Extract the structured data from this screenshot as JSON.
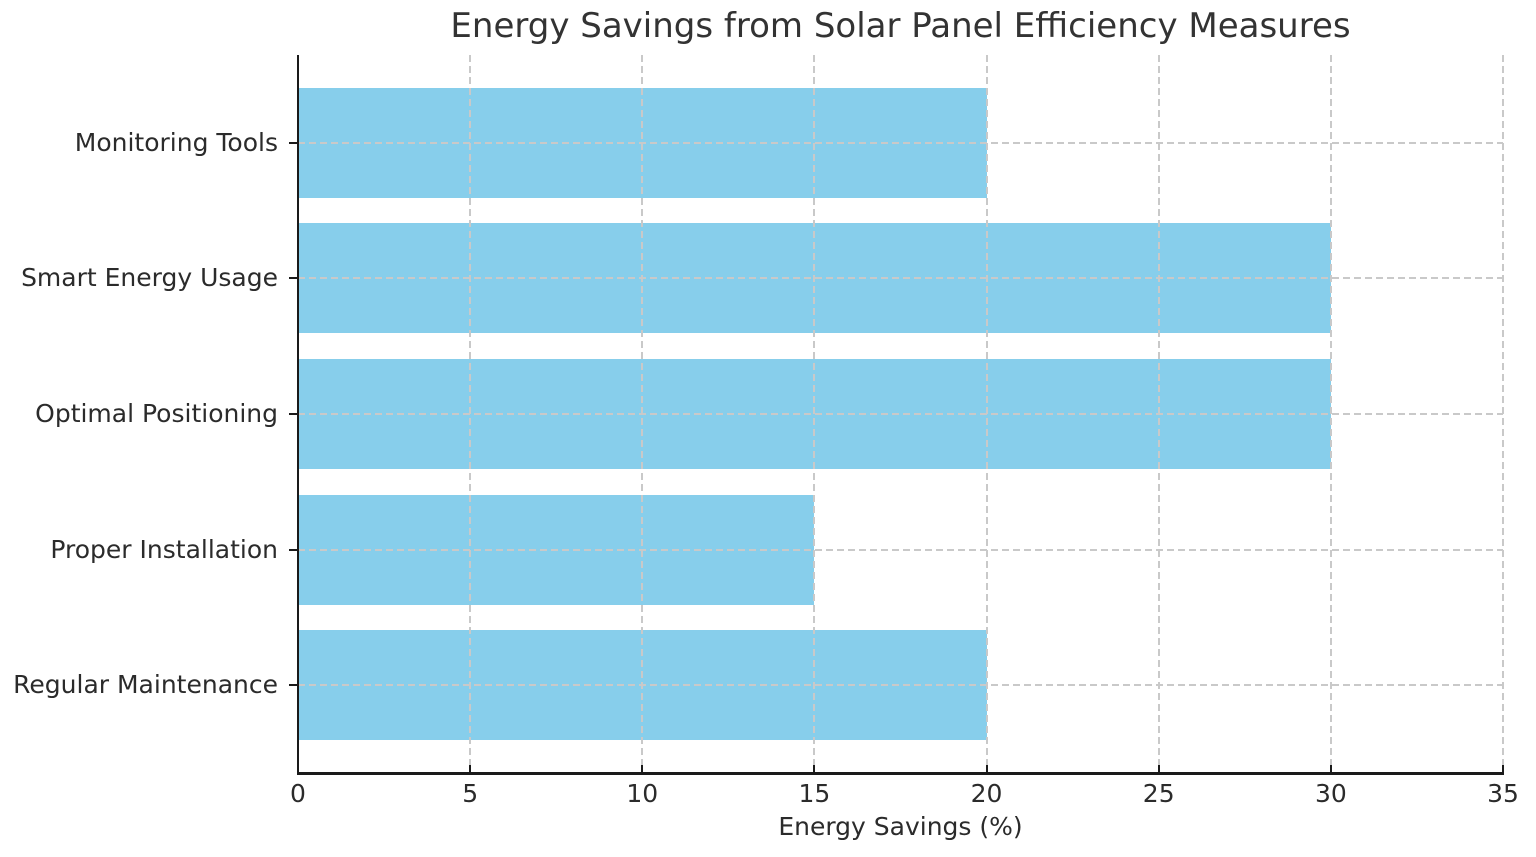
{
  "chart_data": {
    "type": "bar",
    "orientation": "horizontal",
    "title": "Energy Savings from Solar Panel Efficiency Measures",
    "xlabel": "Energy Savings (%)",
    "ylabel": "",
    "categories": [
      "Monitoring Tools",
      "Smart Energy Usage",
      "Optimal Positioning",
      "Proper Installation",
      "Regular Maintenance"
    ],
    "categories_order": "top-to-bottom",
    "values": [
      20,
      30,
      30,
      15,
      20
    ],
    "xlim": [
      0,
      35
    ],
    "xticks": [
      0,
      5,
      10,
      15,
      20,
      25,
      30,
      35
    ],
    "xtick_labels": [
      "0",
      "5",
      "10",
      "15",
      "20",
      "25",
      "30",
      "35"
    ],
    "bar_color": "#87CEEB",
    "grid": {
      "style": "dashed",
      "vertical": true,
      "horizontal": true,
      "color": "#c9c9c9",
      "on_top_of_bars": true
    },
    "legend": "none",
    "colors": {
      "text": "#2b2b2b",
      "title": "#333333",
      "axis": "#1a1a1a"
    }
  }
}
